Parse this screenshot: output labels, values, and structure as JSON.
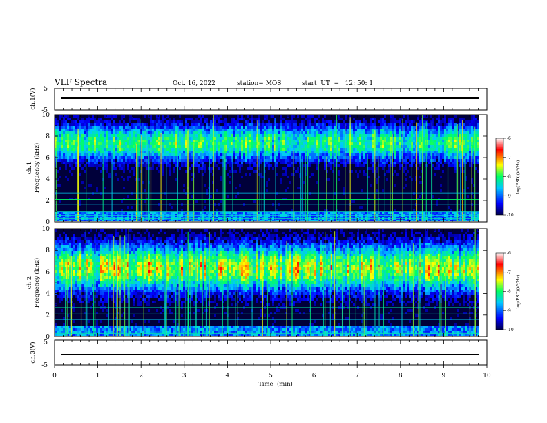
{
  "header": {
    "title": "VLF Spectra",
    "date": "Oct. 16, 2022",
    "station": "station= MOS",
    "start": "start  UT  =   12: 50: 1"
  },
  "chart_data": [
    {
      "type": "line",
      "panel": "ch1-voltage",
      "ylabel": "ch.1(V)",
      "ylim": [
        -5,
        5
      ],
      "yticks": [
        "5",
        "-5"
      ],
      "series": [
        {
          "values": [
            -0.5
          ]
        }
      ]
    },
    {
      "type": "heatmap",
      "panel": "ch1-spectrogram",
      "ylabel": "ch.1\nFrequency (kHz)",
      "ylim": [
        0,
        10
      ],
      "yticks": [
        "0",
        "2",
        "4",
        "6",
        "8",
        "10"
      ],
      "colorbar": {
        "label": "log(PSD)(V²/Hz)",
        "range": [
          -10,
          -6
        ],
        "ticks": [
          "-6",
          "-7",
          "-8",
          "-9",
          "-10"
        ]
      },
      "dominant_band_khz": [
        6,
        9
      ]
    },
    {
      "type": "heatmap",
      "panel": "ch2-spectrogram",
      "ylabel": "ch.2\nFrequency (kHz)",
      "ylim": [
        0,
        10
      ],
      "yticks": [
        "0",
        "2",
        "4",
        "6",
        "8",
        "10"
      ],
      "colorbar": {
        "label": "log(PSD)(V²/Hz)",
        "range": [
          -10,
          -6
        ],
        "ticks": [
          "-6",
          "-7",
          "-8",
          "-9",
          "-10"
        ]
      },
      "dominant_band_khz": [
        5,
        8
      ]
    },
    {
      "type": "line",
      "panel": "ch3-voltage",
      "ylabel": "ch.3(V)",
      "ylim": [
        -5,
        5
      ],
      "yticks": [
        "5",
        "-5"
      ],
      "series": [
        {
          "values": [
            -0.5
          ]
        }
      ]
    }
  ],
  "xaxis": {
    "xlabel": "Time  (min)",
    "xlim": [
      0,
      10
    ],
    "xticks": [
      "0",
      "1",
      "2",
      "3",
      "4",
      "5",
      "6",
      "7",
      "8",
      "9",
      "10"
    ]
  },
  "colormap": [
    "#00004a",
    "#0000ff",
    "#00c8ff",
    "#00ff64",
    "#ffff00",
    "#ff0000",
    "#ffffff"
  ]
}
